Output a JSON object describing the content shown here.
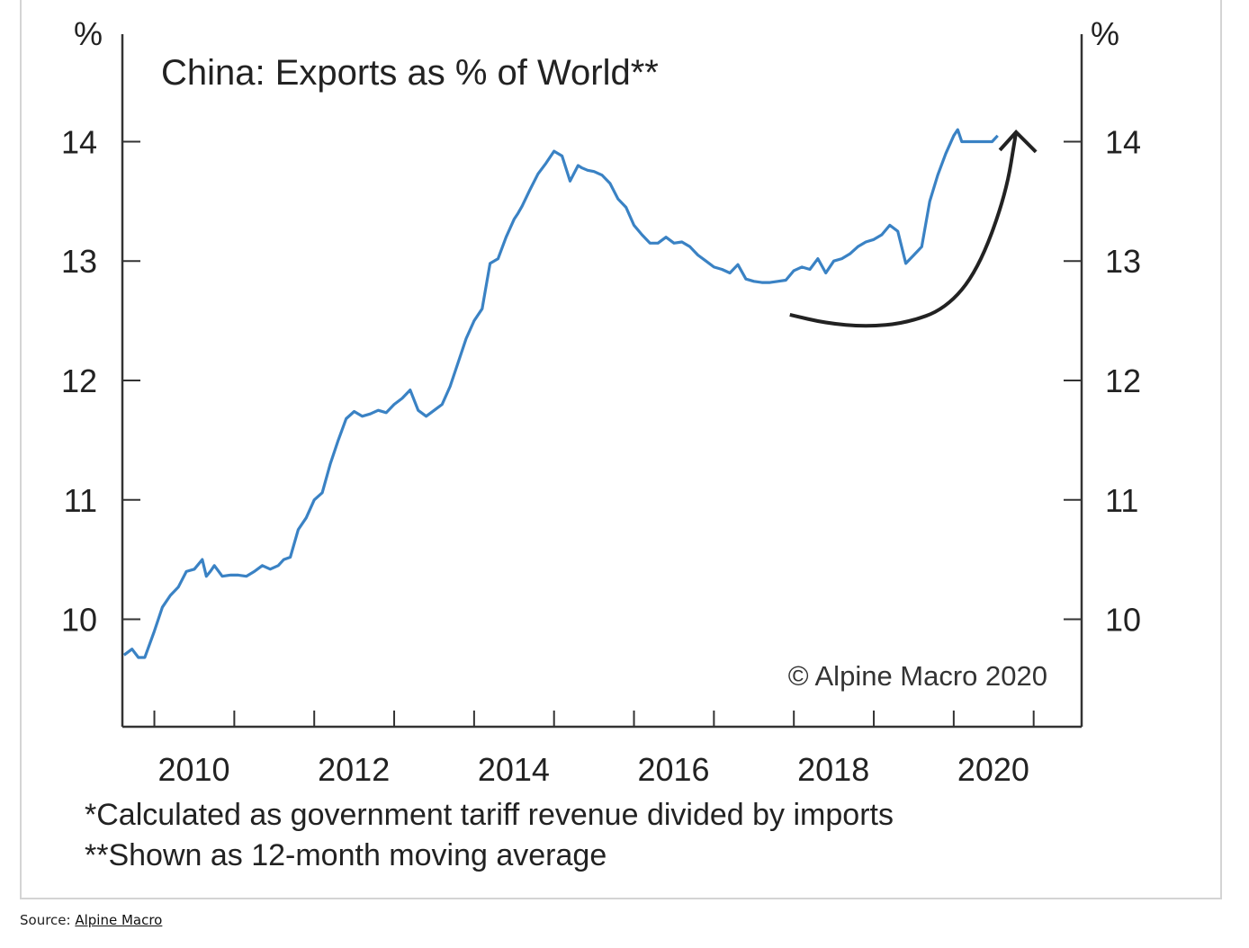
{
  "chart_data": {
    "type": "line",
    "title": "China: Exports as % of World**",
    "left_unit": "%",
    "right_unit": "%",
    "ylim": [
      9.1,
      14.9
    ],
    "xlim": [
      2009.6,
      2021.6
    ],
    "y_ticks": [
      10,
      11,
      12,
      13,
      14
    ],
    "y_tick_labels": [
      "10",
      "11",
      "12",
      "13",
      "14"
    ],
    "x_ticks": [
      2010,
      2011,
      2012,
      2013,
      2014,
      2015,
      2016,
      2017,
      2018,
      2019,
      2020,
      2021
    ],
    "x_tick_labels": [
      "2010",
      "2012",
      "2014",
      "2016",
      "2018",
      "2020"
    ],
    "x_tick_label_years": [
      2010,
      2012,
      2014,
      2016,
      2018,
      2020
    ],
    "grid": false,
    "line_color": "#3a82c4",
    "arrow_color": "#222222",
    "watermark": "© Alpine Macro 2020",
    "footnotes": [
      "*Calculated as government tariff revenue divided by imports",
      "**Shown as 12-month moving average"
    ],
    "series": [
      {
        "x": [
          2009.62,
          2009.72,
          2009.8,
          2009.88,
          2010.0,
          2010.1,
          2010.2,
          2010.3,
          2010.4,
          2010.5,
          2010.6,
          2010.65,
          2010.7,
          2010.75,
          2010.85,
          2010.95,
          2011.05,
          2011.15,
          2011.25,
          2011.35,
          2011.45,
          2011.55,
          2011.62,
          2011.7,
          2011.8,
          2011.9,
          2012.0,
          2012.1,
          2012.2,
          2012.3,
          2012.4,
          2012.5,
          2012.6,
          2012.7,
          2012.8,
          2012.9,
          2013.0,
          2013.1,
          2013.2,
          2013.3,
          2013.4,
          2013.5,
          2013.6,
          2013.7,
          2013.8,
          2013.9,
          2014.0,
          2014.1,
          2014.2,
          2014.3,
          2014.4,
          2014.5,
          2014.55,
          2014.6,
          2014.7,
          2014.8,
          2014.9,
          2015.0,
          2015.1,
          2015.2,
          2015.3,
          2015.35,
          2015.42,
          2015.5,
          2015.6,
          2015.7,
          2015.8,
          2015.9,
          2016.0,
          2016.1,
          2016.2,
          2016.3,
          2016.4,
          2016.5,
          2016.6,
          2016.7,
          2016.8,
          2016.9,
          2017.0,
          2017.1,
          2017.2,
          2017.3,
          2017.4,
          2017.5,
          2017.6,
          2017.7,
          2017.8,
          2017.9,
          2018.0,
          2018.1,
          2018.2,
          2018.3,
          2018.4,
          2018.5,
          2018.6,
          2018.7,
          2018.8,
          2018.9,
          2019.0,
          2019.1,
          2019.2,
          2019.3,
          2019.4,
          2019.5,
          2019.6,
          2019.7,
          2019.8,
          2019.9,
          2020.0,
          2020.05,
          2020.1,
          2020.2,
          2020.3,
          2020.4,
          2020.48,
          2020.55
        ],
        "y": [
          9.7,
          9.75,
          9.68,
          9.68,
          9.9,
          10.1,
          10.2,
          10.27,
          10.4,
          10.42,
          10.5,
          10.36,
          10.4,
          10.45,
          10.36,
          10.37,
          10.37,
          10.36,
          10.4,
          10.45,
          10.42,
          10.45,
          10.5,
          10.52,
          10.75,
          10.85,
          11.0,
          11.06,
          11.3,
          11.5,
          11.68,
          11.74,
          11.7,
          11.72,
          11.75,
          11.73,
          11.8,
          11.85,
          11.92,
          11.75,
          11.7,
          11.75,
          11.8,
          11.95,
          12.15,
          12.35,
          12.5,
          12.6,
          12.98,
          13.02,
          13.2,
          13.35,
          13.4,
          13.46,
          13.6,
          13.73,
          13.82,
          13.92,
          13.88,
          13.67,
          13.8,
          13.78,
          13.76,
          13.75,
          13.72,
          13.65,
          13.52,
          13.45,
          13.3,
          13.22,
          13.15,
          13.15,
          13.2,
          13.15,
          13.16,
          13.12,
          13.05,
          13.0,
          12.95,
          12.93,
          12.9,
          12.97,
          12.85,
          12.83,
          12.82,
          12.82,
          12.83,
          12.84,
          12.92,
          12.95,
          12.93,
          13.02,
          12.9,
          13.0,
          13.02,
          13.06,
          13.12,
          13.16,
          13.18,
          13.22,
          13.3,
          13.25,
          12.98,
          13.05,
          13.12,
          13.5,
          13.72,
          13.9,
          14.05,
          14.1,
          14.0,
          14.0,
          14.0,
          14.0,
          14.0,
          14.05
        ]
      }
    ],
    "trend_arrow": {
      "x": [
        2017.95,
        2018.4,
        2018.9,
        2019.4,
        2019.9,
        2020.3,
        2020.65,
        2020.78
      ],
      "y": [
        12.55,
        12.48,
        12.45,
        12.48,
        12.6,
        12.92,
        13.55,
        14.08
      ]
    }
  },
  "source": {
    "prefix": "Source: ",
    "link_text": "Alpine Macro"
  }
}
